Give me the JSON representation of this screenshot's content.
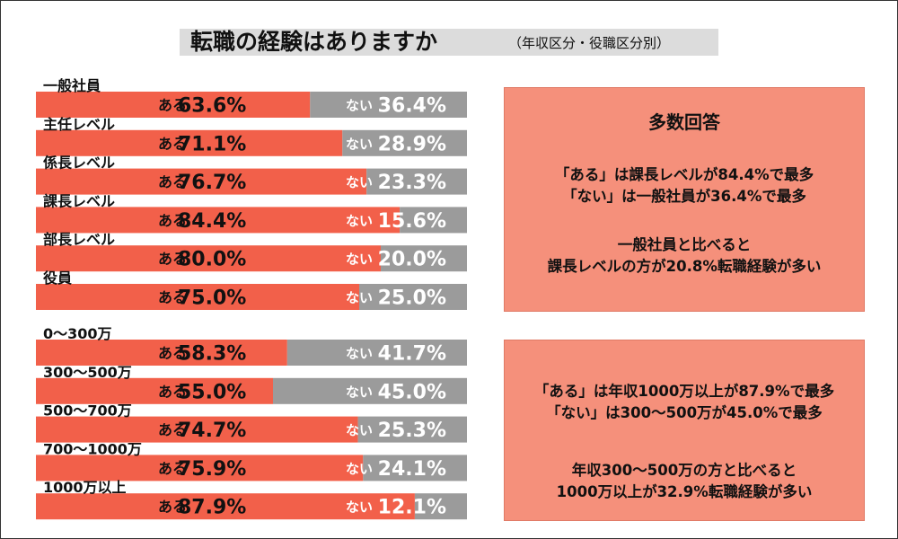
{
  "title": "転職の経験はありますか",
  "subtitle": "（年収区分・役職区分別）",
  "labels": {
    "yes": "ある",
    "no": "ない"
  },
  "colors": {
    "yes": "#f2604a",
    "no": "#9b9b9b",
    "box": "#f5907b"
  },
  "chart_data": [
    {
      "type": "bar",
      "orientation": "horizontal",
      "stacked": true,
      "categories": [
        "一般社員",
        "主任レベル",
        "係長レベル",
        "課長レベル",
        "部長レベル",
        "役員"
      ],
      "series": [
        {
          "name": "ある",
          "values": [
            63.6,
            71.1,
            76.7,
            84.4,
            80.0,
            75.0
          ],
          "display": [
            "63.6%",
            "71.1%",
            "76.7%",
            "84.4%",
            "80.0%",
            "75.0%"
          ]
        },
        {
          "name": "ない",
          "values": [
            36.4,
            28.9,
            23.3,
            15.6,
            20.0,
            25.0
          ],
          "display": [
            "36.4%",
            "28.9%",
            "23.3%",
            "15.6%",
            "20.0%",
            "25.0%"
          ]
        }
      ],
      "xlim": [
        0,
        100
      ]
    },
    {
      "type": "bar",
      "orientation": "horizontal",
      "stacked": true,
      "categories": [
        "0～300万",
        "300～500万",
        "500～700万",
        "700～1000万",
        "1000万以上"
      ],
      "series": [
        {
          "name": "ある",
          "values": [
            58.3,
            55.0,
            74.7,
            75.9,
            87.9
          ],
          "display": [
            "58.3%",
            "55.0%",
            "74.7%",
            "75.9%",
            "87.9%"
          ]
        },
        {
          "name": "ない",
          "values": [
            41.7,
            45.0,
            25.3,
            24.1,
            12.1
          ],
          "display": [
            "41.7%",
            "45.0%",
            "25.3%",
            "24.1%",
            "12.1%"
          ]
        }
      ],
      "xlim": [
        0,
        100
      ]
    }
  ],
  "notes": {
    "position": {
      "heading": "多数回答",
      "line1": "「ある」は課長レベルが84.4%で最多",
      "line2": "「ない」は一般社員が36.4%で最多",
      "line3": "一般社員と比べると",
      "line4": "課長レベルの方が20.8%転職経験が多い"
    },
    "income": {
      "line1": "「ある」は年収1000万以上が87.9%で最多",
      "line2": "「ない」は300～500万が45.0%で最多",
      "line3": "年収300～500万の方と比べると",
      "line4": "1000万以上が32.9%転職経験が多い"
    }
  }
}
